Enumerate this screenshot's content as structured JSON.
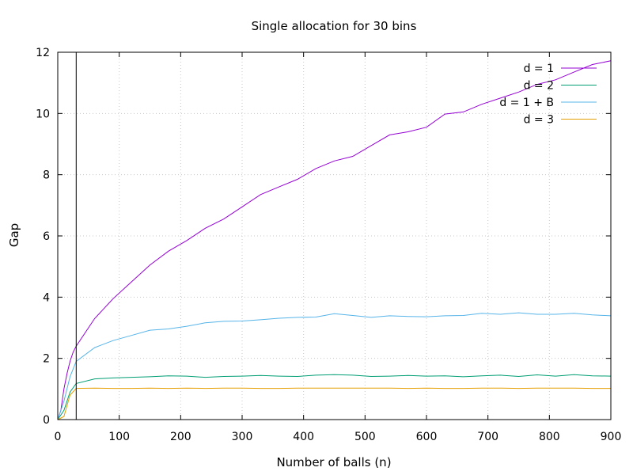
{
  "chart_data": {
    "type": "line",
    "title": "Single allocation for 30 bins",
    "xlabel": "Number of balls (n)",
    "ylabel": "Gap",
    "xlim": [
      0,
      900
    ],
    "ylim": [
      0,
      12
    ],
    "xticks": [
      0,
      100,
      200,
      300,
      400,
      500,
      600,
      700,
      800,
      900
    ],
    "yticks": [
      0,
      2,
      4,
      6,
      8,
      10,
      12
    ],
    "grid": true,
    "legend_position": "top-right",
    "vertical_marker_x": 30,
    "series": [
      {
        "name": "d = 1",
        "color": "#9400d3",
        "points": [
          [
            0,
            0
          ],
          [
            5,
            0.3
          ],
          [
            10,
            1.0
          ],
          [
            15,
            1.5
          ],
          [
            20,
            1.9
          ],
          [
            25,
            2.2
          ],
          [
            30,
            2.4
          ],
          [
            60,
            3.3
          ],
          [
            90,
            3.95
          ],
          [
            120,
            4.5
          ],
          [
            150,
            5.05
          ],
          [
            180,
            5.5
          ],
          [
            210,
            5.85
          ],
          [
            240,
            6.25
          ],
          [
            270,
            6.55
          ],
          [
            300,
            6.95
          ],
          [
            330,
            7.35
          ],
          [
            360,
            7.6
          ],
          [
            390,
            7.85
          ],
          [
            420,
            8.2
          ],
          [
            450,
            8.45
          ],
          [
            480,
            8.6
          ],
          [
            510,
            8.95
          ],
          [
            540,
            9.3
          ],
          [
            570,
            9.4
          ],
          [
            600,
            9.55
          ],
          [
            630,
            9.98
          ],
          [
            660,
            10.05
          ],
          [
            690,
            10.3
          ],
          [
            720,
            10.5
          ],
          [
            750,
            10.7
          ],
          [
            780,
            10.95
          ],
          [
            810,
            11.1
          ],
          [
            840,
            11.35
          ],
          [
            870,
            11.6
          ],
          [
            900,
            11.72
          ]
        ]
      },
      {
        "name": "d = 2",
        "color": "#009e73",
        "points": [
          [
            0,
            0
          ],
          [
            10,
            0.3
          ],
          [
            20,
            0.9
          ],
          [
            30,
            1.18
          ],
          [
            60,
            1.33
          ],
          [
            90,
            1.36
          ],
          [
            120,
            1.38
          ],
          [
            150,
            1.4
          ],
          [
            180,
            1.43
          ],
          [
            210,
            1.42
          ],
          [
            240,
            1.38
          ],
          [
            270,
            1.41
          ],
          [
            300,
            1.42
          ],
          [
            330,
            1.44
          ],
          [
            360,
            1.42
          ],
          [
            390,
            1.41
          ],
          [
            420,
            1.45
          ],
          [
            450,
            1.47
          ],
          [
            480,
            1.45
          ],
          [
            510,
            1.41
          ],
          [
            540,
            1.42
          ],
          [
            570,
            1.44
          ],
          [
            600,
            1.42
          ],
          [
            630,
            1.43
          ],
          [
            660,
            1.4
          ],
          [
            690,
            1.43
          ],
          [
            720,
            1.45
          ],
          [
            750,
            1.41
          ],
          [
            780,
            1.46
          ],
          [
            810,
            1.42
          ],
          [
            840,
            1.47
          ],
          [
            870,
            1.43
          ],
          [
            900,
            1.42
          ]
        ]
      },
      {
        "name": "d = 1 + B",
        "color": "#56b4e9",
        "points": [
          [
            0,
            0
          ],
          [
            10,
            0.6
          ],
          [
            20,
            1.4
          ],
          [
            30,
            1.9
          ],
          [
            60,
            2.35
          ],
          [
            90,
            2.58
          ],
          [
            120,
            2.75
          ],
          [
            150,
            2.92
          ],
          [
            180,
            2.96
          ],
          [
            210,
            3.05
          ],
          [
            240,
            3.16
          ],
          [
            270,
            3.21
          ],
          [
            300,
            3.22
          ],
          [
            330,
            3.26
          ],
          [
            360,
            3.31
          ],
          [
            390,
            3.34
          ],
          [
            420,
            3.35
          ],
          [
            450,
            3.46
          ],
          [
            480,
            3.4
          ],
          [
            510,
            3.34
          ],
          [
            540,
            3.39
          ],
          [
            570,
            3.37
          ],
          [
            600,
            3.36
          ],
          [
            630,
            3.39
          ],
          [
            660,
            3.4
          ],
          [
            690,
            3.47
          ],
          [
            720,
            3.44
          ],
          [
            750,
            3.49
          ],
          [
            780,
            3.44
          ],
          [
            810,
            3.44
          ],
          [
            840,
            3.47
          ],
          [
            870,
            3.42
          ],
          [
            900,
            3.39
          ]
        ]
      },
      {
        "name": "d = 3",
        "color": "#e69f00",
        "points": [
          [
            0,
            0
          ],
          [
            10,
            0.1
          ],
          [
            20,
            0.8
          ],
          [
            30,
            1.02
          ],
          [
            60,
            1.03
          ],
          [
            90,
            1.02
          ],
          [
            120,
            1.02
          ],
          [
            150,
            1.03
          ],
          [
            180,
            1.02
          ],
          [
            210,
            1.03
          ],
          [
            240,
            1.02
          ],
          [
            270,
            1.03
          ],
          [
            300,
            1.03
          ],
          [
            330,
            1.02
          ],
          [
            360,
            1.02
          ],
          [
            390,
            1.03
          ],
          [
            420,
            1.03
          ],
          [
            450,
            1.03
          ],
          [
            480,
            1.03
          ],
          [
            510,
            1.03
          ],
          [
            540,
            1.03
          ],
          [
            570,
            1.02
          ],
          [
            600,
            1.03
          ],
          [
            630,
            1.02
          ],
          [
            660,
            1.02
          ],
          [
            690,
            1.03
          ],
          [
            720,
            1.03
          ],
          [
            750,
            1.02
          ],
          [
            780,
            1.03
          ],
          [
            810,
            1.03
          ],
          [
            840,
            1.03
          ],
          [
            870,
            1.02
          ],
          [
            900,
            1.02
          ]
        ]
      }
    ]
  }
}
